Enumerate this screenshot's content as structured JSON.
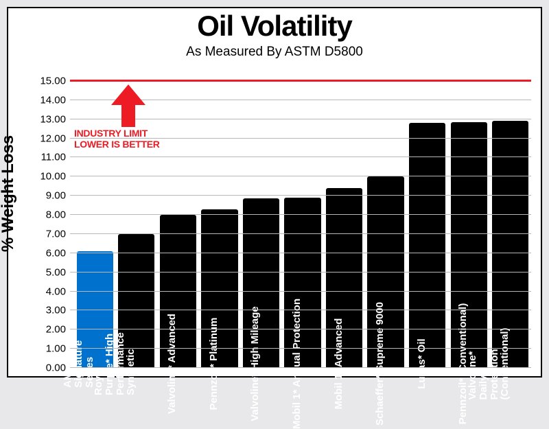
{
  "title": {
    "text": "Oil Volatility",
    "fontsize": 42
  },
  "subtitle": {
    "text": "As Measured By ASTM D5800",
    "fontsize": 19
  },
  "yaxis": {
    "title": "% Weight Loss",
    "title_fontsize": 24,
    "min": 0.0,
    "max": 15.5,
    "tick_start": 0.0,
    "tick_step": 1.0,
    "tick_end": 15.0,
    "tick_fontsize": 15,
    "grid_color": "#b8b8b8"
  },
  "limit": {
    "value": 15.0,
    "color": "#ed1c24",
    "annotation_line1": "INDUSTRY LIMIT",
    "annotation_line2": "LOWER IS BETTER",
    "annotation_fontsize": 14,
    "annotation_color": "#ed1c24",
    "arrow_color": "#ed1c24"
  },
  "chart": {
    "type": "bar",
    "background_color": "#ffffff",
    "frame_color": "#000000",
    "bar_width": 0.88,
    "bar_label_fontsize": 15,
    "categories": [
      {
        "label": "AMSOIL\nSignature Series",
        "value": 6.1,
        "color": "#0072ce"
      },
      {
        "label": "Royal Purple* High\nPerformance\nSynthetic",
        "value": 7.0,
        "color": "#000000"
      },
      {
        "label": "Valvoline* Advanced",
        "value": 8.0,
        "color": "#000000"
      },
      {
        "label": "Pennzoil* Platinum",
        "value": 8.3,
        "color": "#000000"
      },
      {
        "label": "Valvoline* High Mileage",
        "value": 8.85,
        "color": "#000000"
      },
      {
        "label": "Mobil 1* Annual Protection",
        "value": 8.9,
        "color": "#000000"
      },
      {
        "label": "Mobil 1* Advanced",
        "value": 9.4,
        "color": "#000000"
      },
      {
        "label": "Schaeffer* Supreme 9000",
        "value": 10.0,
        "color": "#000000"
      },
      {
        "label": "Lucas* Oil",
        "value": 12.8,
        "color": "#000000"
      },
      {
        "label": "Pennzoil* (Conventional)",
        "value": 12.85,
        "color": "#000000"
      },
      {
        "label": "Valvoline* Daily Protection\n(Conventional)",
        "value": 12.9,
        "color": "#000000"
      }
    ]
  }
}
